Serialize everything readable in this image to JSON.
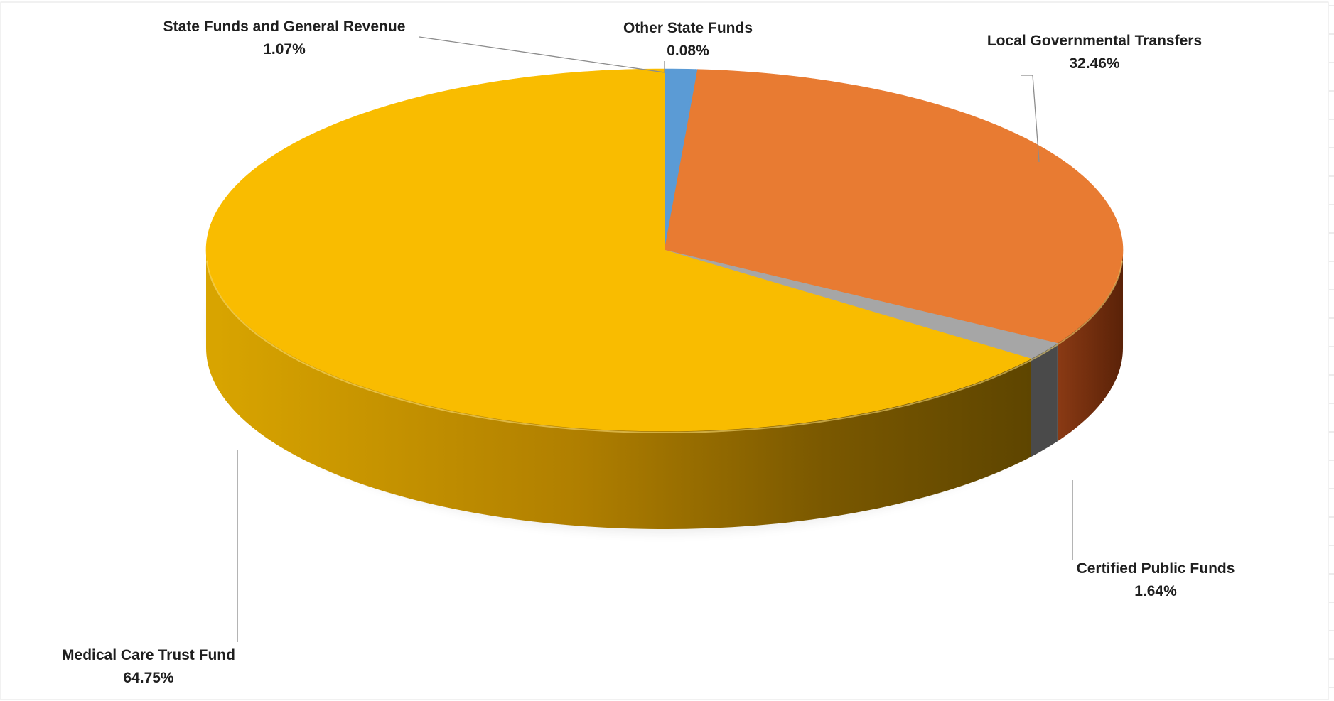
{
  "chart_data": {
    "type": "pie",
    "style": "3d",
    "start": "top",
    "direction": "clockwise",
    "slices": [
      {
        "label": "State Funds and General Revenue",
        "value": 1.07,
        "display": "1.07%",
        "color": "#5b9bd5",
        "side": "#3e6f9d"
      },
      {
        "label": "Other State Funds",
        "value": 0.08,
        "display": "0.08%",
        "color": "#5b9bd5",
        "side": "#3e6f9d"
      },
      {
        "label": "Local Governmental Transfers",
        "value": 32.46,
        "display": "32.46%",
        "color": "#e87b32",
        "side": "#6b2d10"
      },
      {
        "label": "Certified Public Funds",
        "value": 1.64,
        "display": "1.64%",
        "color": "#a6a6a6",
        "side": "#4a4a4a"
      },
      {
        "label": "Medical Care Trust Fund",
        "value": 64.75,
        "display": "64.75%",
        "color": "#f9bc00",
        "side": "#9a7000"
      }
    ]
  }
}
